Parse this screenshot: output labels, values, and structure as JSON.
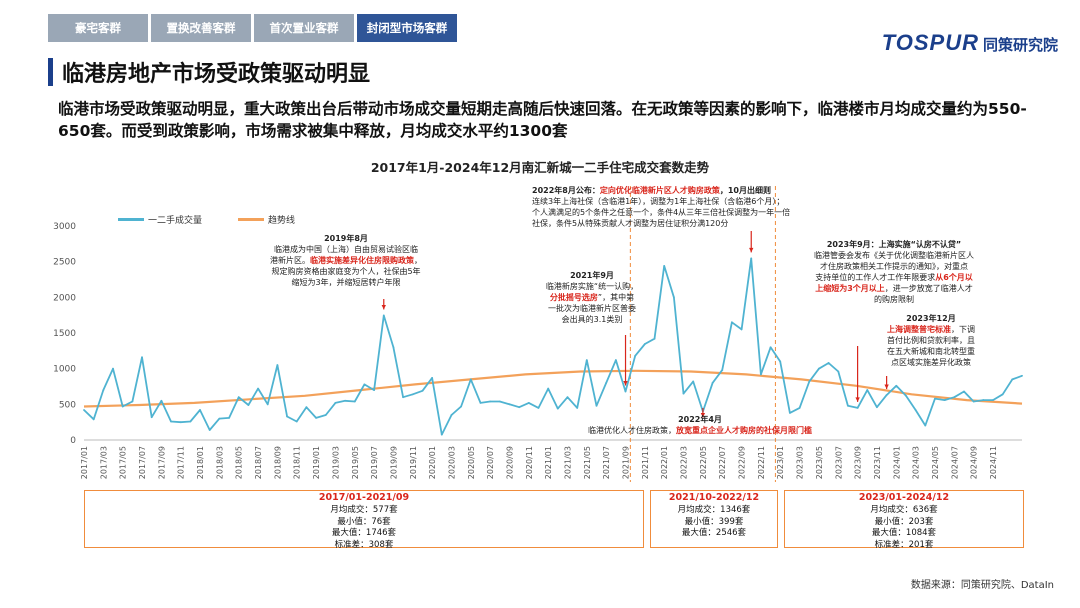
{
  "tabs": [
    {
      "label": "豪宅客群",
      "active": false
    },
    {
      "label": "置换改善客群",
      "active": false
    },
    {
      "label": "首次置业客群",
      "active": false
    },
    {
      "label": "封闭型市场客群",
      "active": true
    }
  ],
  "logo": {
    "brand": "TOSPUR",
    "name": "同策研究院"
  },
  "page_title": "临港房地产市场受政策驱动明显",
  "summary": "临港市场受政策驱动明显，重大政策出台后带动市场成交量短期走高随后快速回落。在无政策等因素的影响下，临港楼市月均成交量约为550-650套。而受到政策影响，市场需求被集中释放，月均成交水平约1300套",
  "source": "数据来源：同策研究院、DataIn",
  "colors": {
    "series": "#4fb3d1",
    "trend": "#f3a15a",
    "accent": "#d9261c",
    "brand": "#1b3f8b"
  },
  "chart_data": {
    "type": "line",
    "title": "2017年1月-2024年12月南汇新城一二手住宅成交套数走势",
    "xlabel": "",
    "ylabel": "",
    "ylim": [
      0,
      3000
    ],
    "yticks": [
      0,
      500,
      1000,
      1500,
      2000,
      2500,
      3000
    ],
    "grid": false,
    "legend_position": "top-left",
    "x_tick_labels": [
      "2017/01",
      "2017/03",
      "2017/05",
      "2017/07",
      "2017/09",
      "2017/11",
      "2018/01",
      "2018/03",
      "2018/05",
      "2018/07",
      "2018/09",
      "2018/11",
      "2019/01",
      "2019/03",
      "2019/05",
      "2019/07",
      "2019/09",
      "2019/11",
      "2020/01",
      "2020/03",
      "2020/05",
      "2020/07",
      "2020/09",
      "2020/11",
      "2021/01",
      "2021/03",
      "2021/05",
      "2021/07",
      "2021/09",
      "2021/11",
      "2022/01",
      "2022/03",
      "2022/05",
      "2022/07",
      "2022/09",
      "2022/11",
      "2023/01",
      "2023/03",
      "2023/05",
      "2023/07",
      "2023/09",
      "2023/11",
      "2024/01",
      "2024/03",
      "2024/05",
      "2024/07",
      "2024/09",
      "2024/11"
    ],
    "series": [
      {
        "name": "一二手成交量",
        "values": [
          420,
          290,
          700,
          1000,
          470,
          540,
          1160,
          320,
          550,
          260,
          250,
          260,
          420,
          140,
          300,
          310,
          600,
          490,
          720,
          500,
          1050,
          330,
          260,
          460,
          310,
          350,
          520,
          550,
          540,
          780,
          700,
          1746,
          1300,
          600,
          640,
          690,
          870,
          76,
          350,
          470,
          850,
          520,
          540,
          540,
          500,
          460,
          520,
          450,
          720,
          440,
          600,
          450,
          1120,
          480,
          800,
          1120,
          680,
          1180,
          1346,
          1420,
          2440,
          2000,
          650,
          820,
          399,
          800,
          980,
          1650,
          1550,
          2546,
          920,
          1300,
          1100,
          380,
          450,
          820,
          1000,
          1080,
          960,
          480,
          450,
          700,
          460,
          630,
          760,
          620,
          420,
          203,
          580,
          560,
          600,
          680,
          540,
          560,
          560,
          640,
          850,
          900
        ]
      },
      {
        "name": "趋势线",
        "values": [
          470,
          490,
          520,
          570,
          620,
          700,
          780,
          850,
          920,
          960,
          970,
          960,
          920,
          850,
          760,
          640,
          560,
          510
        ]
      }
    ]
  },
  "annotations": {
    "a2019": {
      "l1": "2019年8月",
      "l2": "临港成为中国（上海）自由贸易试验区临",
      "l3a": "港新片区。",
      "l3b": "临港实施差异化住房限购政策",
      "l3c": "，",
      "l4": "规定购房资格由家庭变为个人，社保由5年",
      "l5": "缩短为3年，并缩短居转户年限"
    },
    "a2021": {
      "l1": "2021年9月",
      "l2": "临港新房实施“统一认购，",
      "l3a": "分批摇号选房",
      "l3b": "”，其中第",
      "l4": "一批次为临港新片区普委",
      "l5": "会出具的3.1类别"
    },
    "a2022_8": {
      "l1a": "2022年8月公布：",
      "l1b": "定向优化临港新片区人才购房政策",
      "l1c": "，10月出细则",
      "l2": "连续3年上海社保（含临港1年），调整为1年上海社保（含临港6个月）；",
      "l3": "个人满满足的5个条件之任意一个，条件4从三年三倍社保调整为一年一倍",
      "l4": "社保，条件5从特殊贡献人才调整为居住证积分满120分"
    },
    "a2022_4": {
      "l1": "2022年4月",
      "l2a": "临港优化人才住房政策，",
      "l2b": "放宽重点企业人才购房的社保月限门槛"
    },
    "a2023_9": {
      "l1": "2023年9月：上海实施“认房不认贷”",
      "l2": "临港管委会发布《关于优化调整临港新片区人",
      "l3": "才住房政策相关工作提示的通知》，对重点",
      "l4a": "支持单位的工作人才工作年限要求",
      "l4b": "从6个月以",
      "l5a": "上缩短为3个月以上",
      "l5b": "，进一步放宽了临港人才",
      "l6": "的购房限制"
    },
    "a2023_12": {
      "l1": "2023年12月",
      "l2a": "上海调整普宅标准",
      "l2b": "，下调",
      "l3": "首付比例和贷款利率，且",
      "l4": "在五大新城和南北转型重",
      "l5": "点区域实施差异化政策"
    }
  },
  "stat_boxes": [
    {
      "period": "2017/01-2021/09",
      "avg": "月均成交：577套",
      "min": "最小值：76套",
      "max": "最大值：1746套",
      "std": "标准差：308套"
    },
    {
      "period": "2021/10-2022/12",
      "avg": "月均成交：1346套",
      "min": "最小值：399套",
      "max": "最大值：2546套"
    },
    {
      "period": "2023/01-2024/12",
      "avg": "月均成交：636套",
      "min": "最小值：203套",
      "max": "最大值：1084套",
      "std": "标准差：201套"
    }
  ]
}
